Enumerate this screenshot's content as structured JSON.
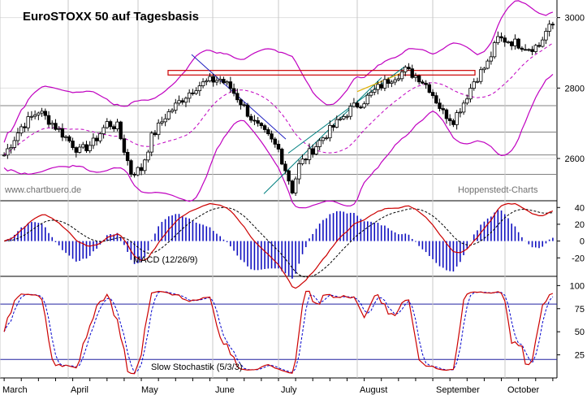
{
  "title": "EuroSTOXX 50 auf Tagesbasis",
  "watermark_left": "www.chartbuero.de",
  "watermark_right": "Hoppenstedt-Charts",
  "months": [
    "March",
    "April",
    "May",
    "June",
    "July",
    "August",
    "September",
    "October"
  ],
  "colors": {
    "candle_up": "#ffffff",
    "candle_down": "#000000",
    "bollinger": "#c000c0",
    "ma": "#c000c0",
    "macd": "#cc0000",
    "signal": "#000000",
    "histogram": "#1010c0",
    "stoch_k": "#cc0000",
    "stoch_d": "#0000cc",
    "downtrend": "#2020c0",
    "uptrend": "#008080",
    "short_up": "#e0b000",
    "resistance": "#cc0000"
  },
  "chart_data": [
    {
      "type": "candlestick",
      "title": "EuroSTOXX 50 auf Tagesbasis",
      "ylim": [
        2480,
        3050
      ],
      "y_ticks": [
        2600,
        2800,
        3000
      ],
      "horizontal_lines": [
        2555,
        2610,
        2675,
        2750
      ],
      "resistance_zone": [
        2837,
        2850
      ],
      "overlays": [
        "Bollinger Bands",
        "moving average",
        "trend lines"
      ],
      "grid": true
    },
    {
      "type": "line",
      "title": "MACD (12/26/9)",
      "ylim": [
        -42,
        48
      ],
      "y_ticks": [
        40,
        20,
        0,
        -20
      ],
      "series": [
        {
          "name": "MACD"
        },
        {
          "name": "Signal"
        },
        {
          "name": "Histogram"
        }
      ]
    },
    {
      "type": "line",
      "title": "Slow Stochastik (5/3/3)",
      "ylim": [
        0,
        110
      ],
      "y_ticks": [
        100,
        75,
        50,
        25
      ],
      "horizontal_lines": [
        80,
        20
      ],
      "series": [
        {
          "name": "%K"
        },
        {
          "name": "%D"
        }
      ]
    }
  ]
}
